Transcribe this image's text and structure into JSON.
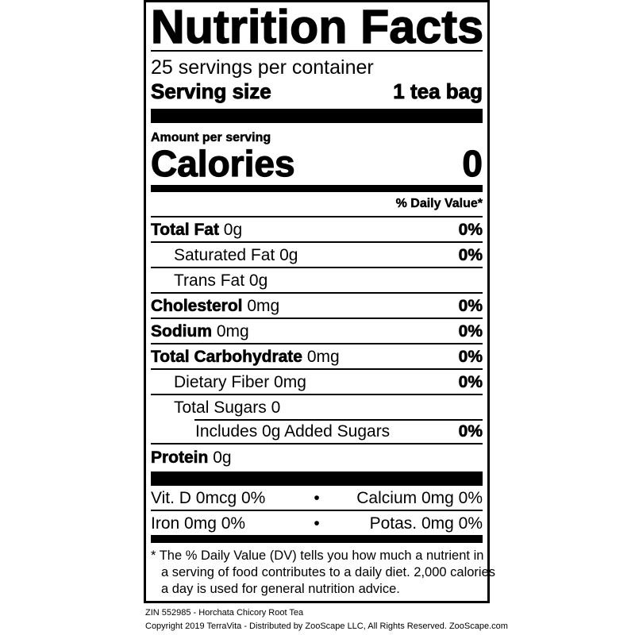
{
  "label": {
    "title": "Nutrition Facts",
    "servings_per_container": "25 servings per container",
    "serving_size_label": "Serving size",
    "serving_size_value": "1 tea bag",
    "amount_per_serving": "Amount per serving",
    "calories_label": "Calories",
    "calories_value": "0",
    "daily_value_header": "% Daily Value*",
    "nutrients": [
      {
        "name": "Total Fat",
        "amount": "0g",
        "dv": "0%"
      },
      {
        "name": "Saturated Fat 0g",
        "amount": "",
        "dv": "0%"
      },
      {
        "name": "Trans Fat 0g",
        "amount": "",
        "dv": ""
      },
      {
        "name": "Cholesterol",
        "amount": "0mg",
        "dv": "0%"
      },
      {
        "name": "Sodium",
        "amount": "0mg",
        "dv": "0%"
      },
      {
        "name": "Total Carbohydrate",
        "amount": "0mg",
        "dv": "0%"
      },
      {
        "name": "Dietary Fiber 0mg",
        "amount": "",
        "dv": "0%"
      },
      {
        "name": "Total Sugars 0",
        "amount": "",
        "dv": ""
      },
      {
        "name": "Includes 0g Added Sugars",
        "amount": "",
        "dv": "0%"
      },
      {
        "name": "Protein",
        "amount": "0g",
        "dv": ""
      }
    ],
    "vitamins": [
      {
        "left": "Vit. D 0mcg 0%",
        "sep": "•",
        "right": "Calcium 0mg 0%"
      },
      {
        "left": "Iron 0mg 0%",
        "sep": "•",
        "right": "Potas. 0mg 0%"
      }
    ],
    "footnote": [
      "* The % Daily Value (DV) tells you how much a nutrient in",
      "a serving of food contributes to a daily diet. 2,000 calories",
      "a day is used for general nutrition advice."
    ]
  },
  "credits": {
    "product": "ZIN 552985 - Horchata Chicory Root Tea",
    "copyright": "Copyright 2019 TerraVita - Distributed by ZooScape LLC, All Rights Reserved. ZooScape.com"
  }
}
